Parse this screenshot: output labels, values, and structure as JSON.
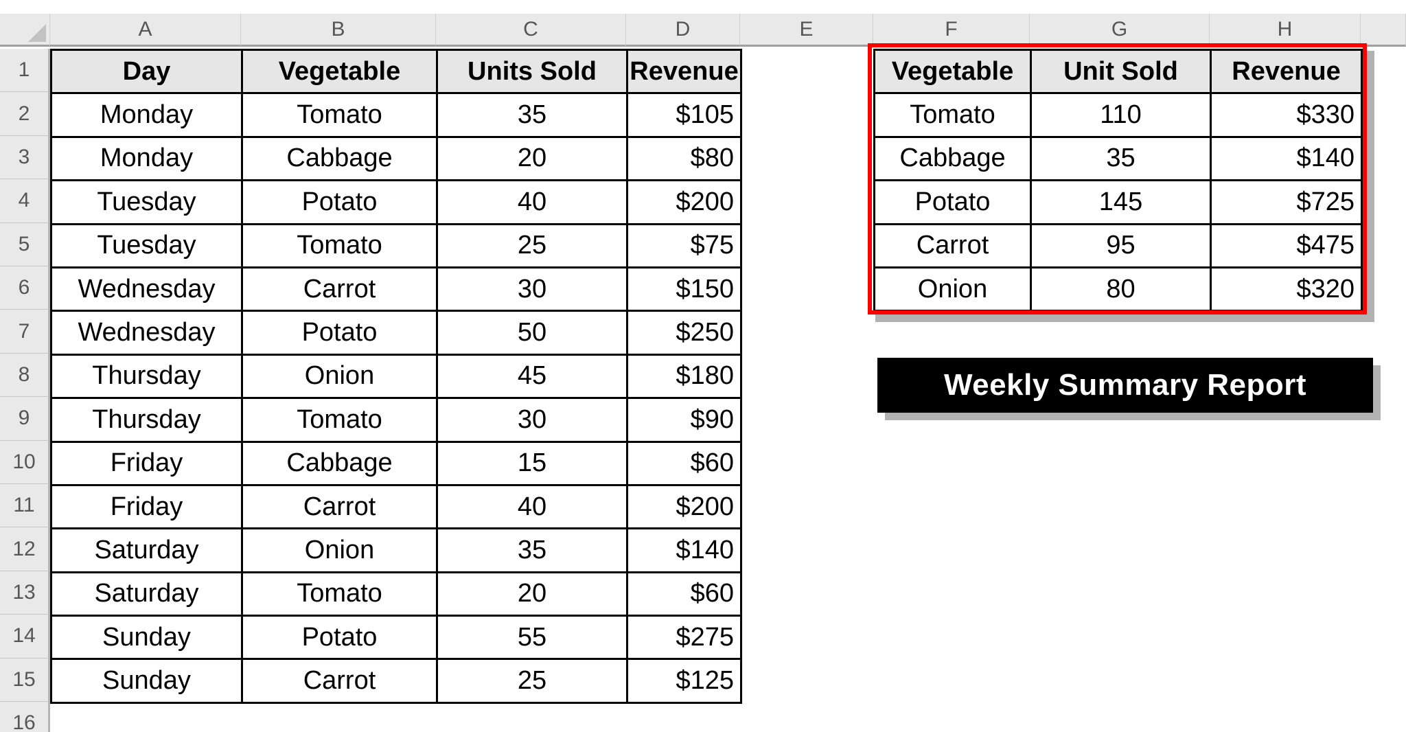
{
  "sheet": {
    "column_letters": [
      "A",
      "B",
      "C",
      "D",
      "E",
      "F",
      "G",
      "H"
    ],
    "row_numbers": [
      "1",
      "2",
      "3",
      "4",
      "5",
      "6",
      "7",
      "8",
      "9",
      "10",
      "11",
      "12",
      "13",
      "14",
      "15",
      "16"
    ]
  },
  "main_table": {
    "headers": [
      "Day",
      "Vegetable",
      "Units Sold",
      "Revenue"
    ],
    "rows": [
      [
        "Monday",
        "Tomato",
        "35",
        "$105"
      ],
      [
        "Monday",
        "Cabbage",
        "20",
        "$80"
      ],
      [
        "Tuesday",
        "Potato",
        "40",
        "$200"
      ],
      [
        "Tuesday",
        "Tomato",
        "25",
        "$75"
      ],
      [
        "Wednesday",
        "Carrot",
        "30",
        "$150"
      ],
      [
        "Wednesday",
        "Potato",
        "50",
        "$250"
      ],
      [
        "Thursday",
        "Onion",
        "45",
        "$180"
      ],
      [
        "Thursday",
        "Tomato",
        "30",
        "$90"
      ],
      [
        "Friday",
        "Cabbage",
        "15",
        "$60"
      ],
      [
        "Friday",
        "Carrot",
        "40",
        "$200"
      ],
      [
        "Saturday",
        "Onion",
        "35",
        "$140"
      ],
      [
        "Saturday",
        "Tomato",
        "20",
        "$60"
      ],
      [
        "Sunday",
        "Potato",
        "55",
        "$275"
      ],
      [
        "Sunday",
        "Carrot",
        "25",
        "$125"
      ]
    ]
  },
  "summary_table": {
    "headers": [
      "Vegetable",
      "Unit Sold",
      "Revenue"
    ],
    "rows": [
      [
        "Tomato",
        "110",
        "$330"
      ],
      [
        "Cabbage",
        "35",
        "$140"
      ],
      [
        "Potato",
        "145",
        "$725"
      ],
      [
        "Carrot",
        "95",
        "$475"
      ],
      [
        "Onion",
        "80",
        "$320"
      ]
    ]
  },
  "banner": {
    "label": "Weekly Summary Report"
  },
  "colors": {
    "highlight_border": "#FF0000",
    "banner_bg": "#000000",
    "banner_text": "#FFFFFF",
    "table_header_fill": "#E7E6E6",
    "chrome_fill": "#E9E9E9",
    "shadow": "#B2B2B2"
  }
}
